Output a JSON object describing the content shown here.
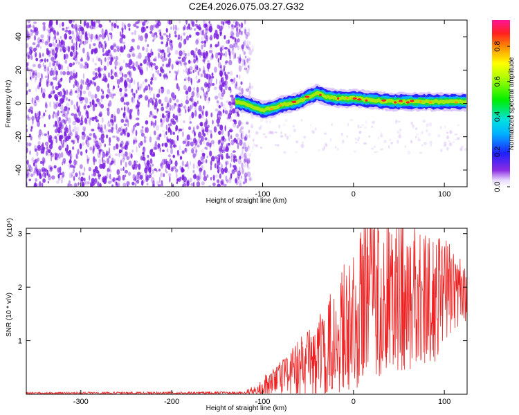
{
  "title": "C2E4.2026.075.03.27.G32",
  "colors": {
    "snr_line": "#ee2222",
    "noise_speckle": "#7a1ee0",
    "frame": "#000000"
  },
  "chart_data": [
    {
      "type": "heatmap",
      "name": "spectrogram",
      "xlabel": "Height of straight line (km)",
      "ylabel": "Frequency (Hz)",
      "xlim": [
        -360,
        125
      ],
      "ylim": [
        -50,
        50
      ],
      "xticks": [
        -300,
        -200,
        -100,
        0,
        100
      ],
      "yticks": [
        -40,
        -20,
        0,
        20,
        40
      ],
      "noise_region_x": [
        -360,
        -115
      ],
      "signal_start_x": -130,
      "signal_center_hz": [
        [
          -130,
          1
        ],
        [
          -120,
          0
        ],
        [
          -110,
          -2
        ],
        [
          -100,
          -4
        ],
        [
          -90,
          -3
        ],
        [
          -80,
          -1
        ],
        [
          -70,
          0
        ],
        [
          -60,
          1
        ],
        [
          -50,
          4
        ],
        [
          -40,
          6
        ],
        [
          -30,
          4
        ],
        [
          -20,
          3
        ],
        [
          -10,
          3
        ],
        [
          0,
          3
        ],
        [
          20,
          2
        ],
        [
          40,
          1
        ],
        [
          60,
          1
        ],
        [
          80,
          1
        ],
        [
          100,
          1
        ],
        [
          125,
          1
        ]
      ],
      "colorbar": {
        "label": "Normalized spectral amplitude",
        "range": [
          0,
          0.95
        ],
        "ticks": [
          "0.0",
          "0.2",
          "0.4",
          "0.6",
          "0.8"
        ]
      }
    },
    {
      "type": "line",
      "name": "snr",
      "xlabel": "Height of straight line (km)",
      "ylabel": "SNR (10 * v/v)",
      "scale_label": "(x10⁴)",
      "xlim": [
        -360,
        125
      ],
      "ylim": [
        0,
        3.1
      ],
      "xticks": [
        -300,
        -200,
        -100,
        0,
        100
      ],
      "yticks": [
        1,
        2,
        3
      ],
      "series": [
        {
          "name": "SNR",
          "envelope": [
            {
              "x": -360,
              "mean": 0.02,
              "spread": 0.02
            },
            {
              "x": -120,
              "mean": 0.02,
              "spread": 0.03
            },
            {
              "x": -100,
              "mean": 0.12,
              "spread": 0.2
            },
            {
              "x": -80,
              "mean": 0.3,
              "spread": 0.35
            },
            {
              "x": -60,
              "mean": 0.45,
              "spread": 0.6
            },
            {
              "x": -40,
              "mean": 0.6,
              "spread": 0.8
            },
            {
              "x": -20,
              "mean": 1.0,
              "spread": 1.1
            },
            {
              "x": 0,
              "mean": 1.5,
              "spread": 1.4
            },
            {
              "x": 20,
              "mean": 1.9,
              "spread": 1.7
            },
            {
              "x": 40,
              "mean": 1.9,
              "spread": 1.5
            },
            {
              "x": 60,
              "mean": 1.8,
              "spread": 1.4
            },
            {
              "x": 80,
              "mean": 1.75,
              "spread": 1.3
            },
            {
              "x": 100,
              "mean": 1.85,
              "spread": 1.1
            },
            {
              "x": 125,
              "mean": 1.9,
              "spread": 0.6
            }
          ]
        }
      ]
    }
  ]
}
